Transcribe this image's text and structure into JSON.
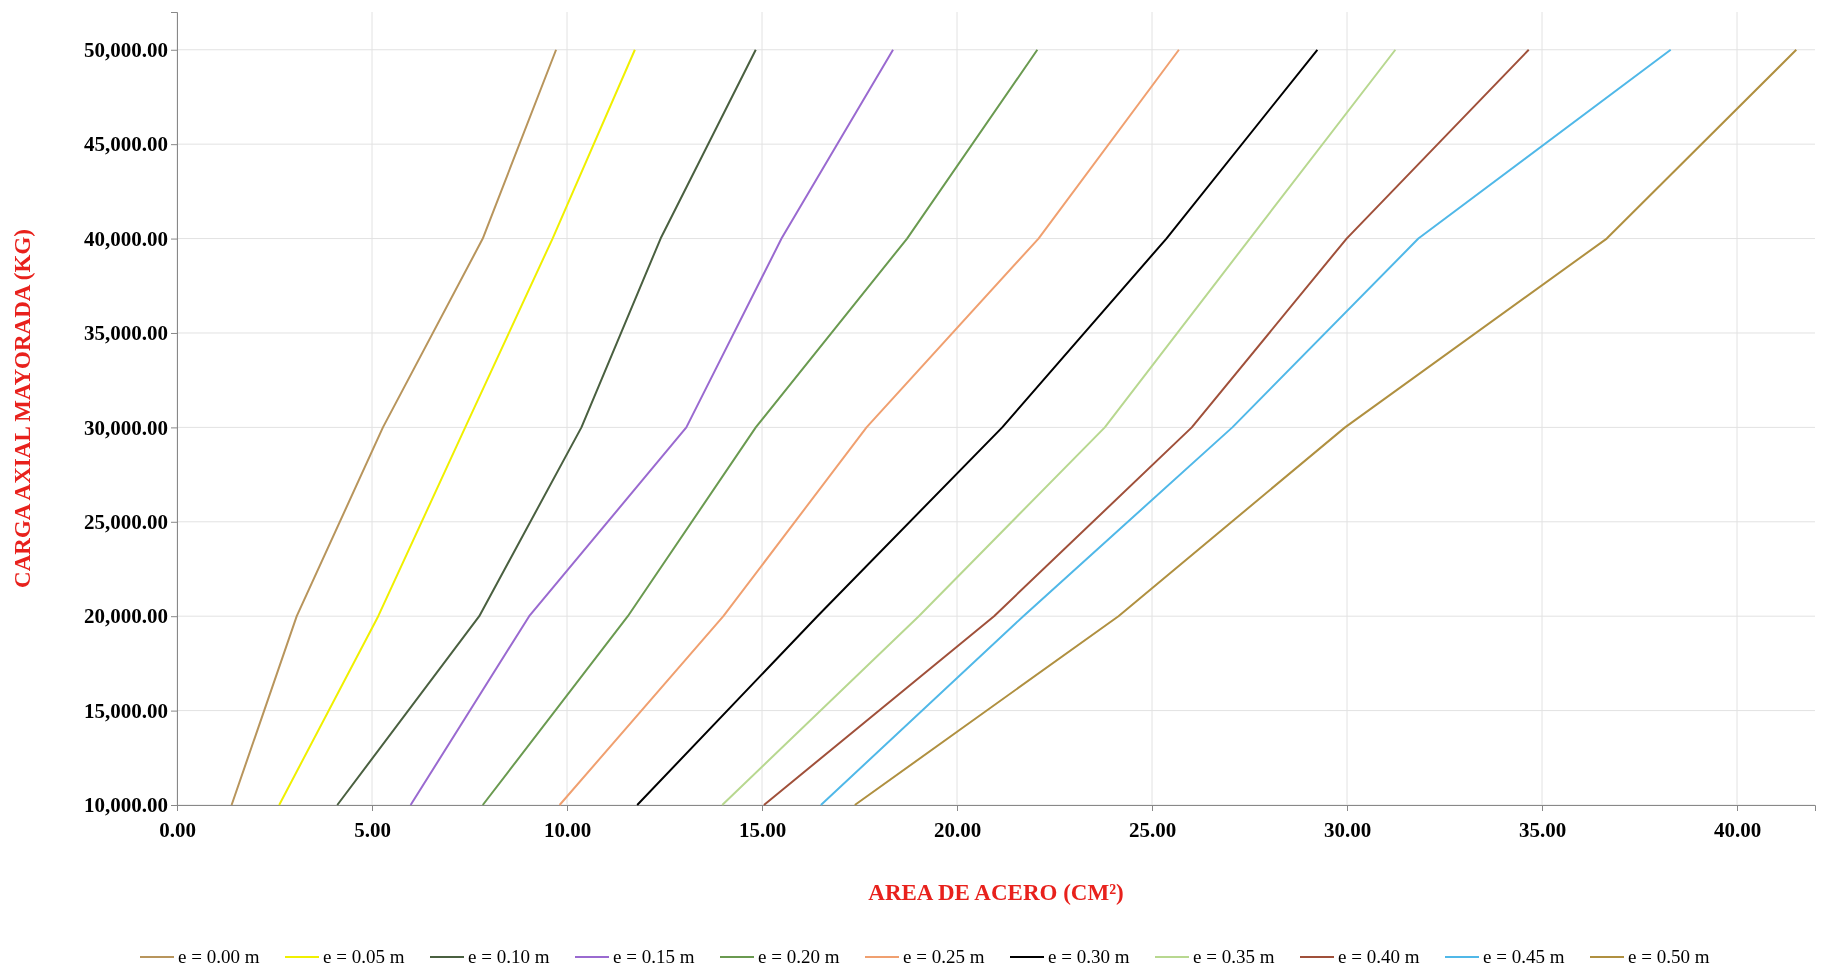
{
  "chart_data": {
    "type": "line",
    "xlabel": "AREA DE ACERO (CM²)",
    "ylabel": "CARGA AXIAL MAYORADA (KG)",
    "xlim": [
      0,
      42
    ],
    "ylim": [
      10000,
      52000
    ],
    "xticks": [
      {
        "value": 0,
        "label": "0.00"
      },
      {
        "value": 5,
        "label": "5.00"
      },
      {
        "value": 10,
        "label": "10.00"
      },
      {
        "value": 15,
        "label": "15.00"
      },
      {
        "value": 20,
        "label": "20.00"
      },
      {
        "value": 25,
        "label": "25.00"
      },
      {
        "value": 30,
        "label": "30.00"
      },
      {
        "value": 35,
        "label": "35.00"
      },
      {
        "value": 40,
        "label": "40.00"
      }
    ],
    "yticks": [
      {
        "value": 10000,
        "label": "10,000.00"
      },
      {
        "value": 15000,
        "label": "15,000.00"
      },
      {
        "value": 20000,
        "label": "20,000.00"
      },
      {
        "value": 25000,
        "label": "25,000.00"
      },
      {
        "value": 30000,
        "label": "30,000.00"
      },
      {
        "value": 35000,
        "label": "35,000.00"
      },
      {
        "value": 40000,
        "label": "40,000.00"
      },
      {
        "value": 45000,
        "label": "45,000.00"
      },
      {
        "value": 50000,
        "label": "50,000.00"
      }
    ],
    "grid": true,
    "legend": "bottom",
    "marker": "none",
    "line_style": "solid",
    "series": [
      {
        "name": "e = 0.00 m",
        "color": "#b8955c",
        "x": [
          1.4,
          3.07,
          5.28,
          7.84,
          9.72
        ],
        "values": [
          10000,
          20000,
          30000,
          40000,
          50000
        ]
      },
      {
        "name": "e = 0.05 m",
        "color": "#f0f000",
        "x": [
          2.62,
          5.16,
          7.39,
          9.63,
          11.74
        ],
        "values": [
          10000,
          20000,
          30000,
          40000,
          50000
        ]
      },
      {
        "name": "e = 0.10 m",
        "color": "#4a6040",
        "x": [
          4.11,
          7.75,
          10.37,
          12.4,
          14.84
        ],
        "values": [
          10000,
          20000,
          30000,
          40000,
          50000
        ]
      },
      {
        "name": "e = 0.15 m",
        "color": "#9a6ad0",
        "x": [
          5.99,
          9.03,
          13.06,
          15.5,
          18.36
        ],
        "values": [
          10000,
          20000,
          30000,
          40000,
          50000
        ]
      },
      {
        "name": "e = 0.20 m",
        "color": "#6a9a50",
        "x": [
          7.84,
          11.56,
          14.84,
          18.72,
          22.06
        ],
        "values": [
          10000,
          20000,
          30000,
          40000,
          50000
        ]
      },
      {
        "name": "e = 0.25 m",
        "color": "#f0a070",
        "x": [
          9.81,
          14.01,
          17.68,
          22.09,
          25.69
        ],
        "values": [
          10000,
          20000,
          30000,
          40000,
          50000
        ]
      },
      {
        "name": "e = 0.30 m",
        "color": "#000000",
        "x": [
          11.8,
          16.42,
          21.16,
          25.37,
          29.24
        ],
        "values": [
          10000,
          20000,
          30000,
          40000,
          50000
        ]
      },
      {
        "name": "e = 0.35 m",
        "color": "#b8d890",
        "x": [
          13.98,
          19.02,
          23.79,
          27.51,
          31.24
        ],
        "values": [
          10000,
          20000,
          30000,
          40000,
          50000
        ]
      },
      {
        "name": "e = 0.40 m",
        "color": "#a0503a",
        "x": [
          15.05,
          20.95,
          26.02,
          29.99,
          34.66
        ],
        "values": [
          10000,
          20000,
          30000,
          40000,
          50000
        ]
      },
      {
        "name": "e = 0.45 m",
        "color": "#50b8e8",
        "x": [
          16.51,
          21.7,
          27.06,
          31.83,
          38.3
        ],
        "values": [
          10000,
          20000,
          30000,
          40000,
          50000
        ]
      },
      {
        "name": "e = 0.50 m",
        "color": "#b09040",
        "x": [
          17.38,
          24.14,
          29.95,
          36.66,
          41.52
        ],
        "values": [
          10000,
          20000,
          30000,
          40000,
          50000
        ]
      }
    ]
  }
}
